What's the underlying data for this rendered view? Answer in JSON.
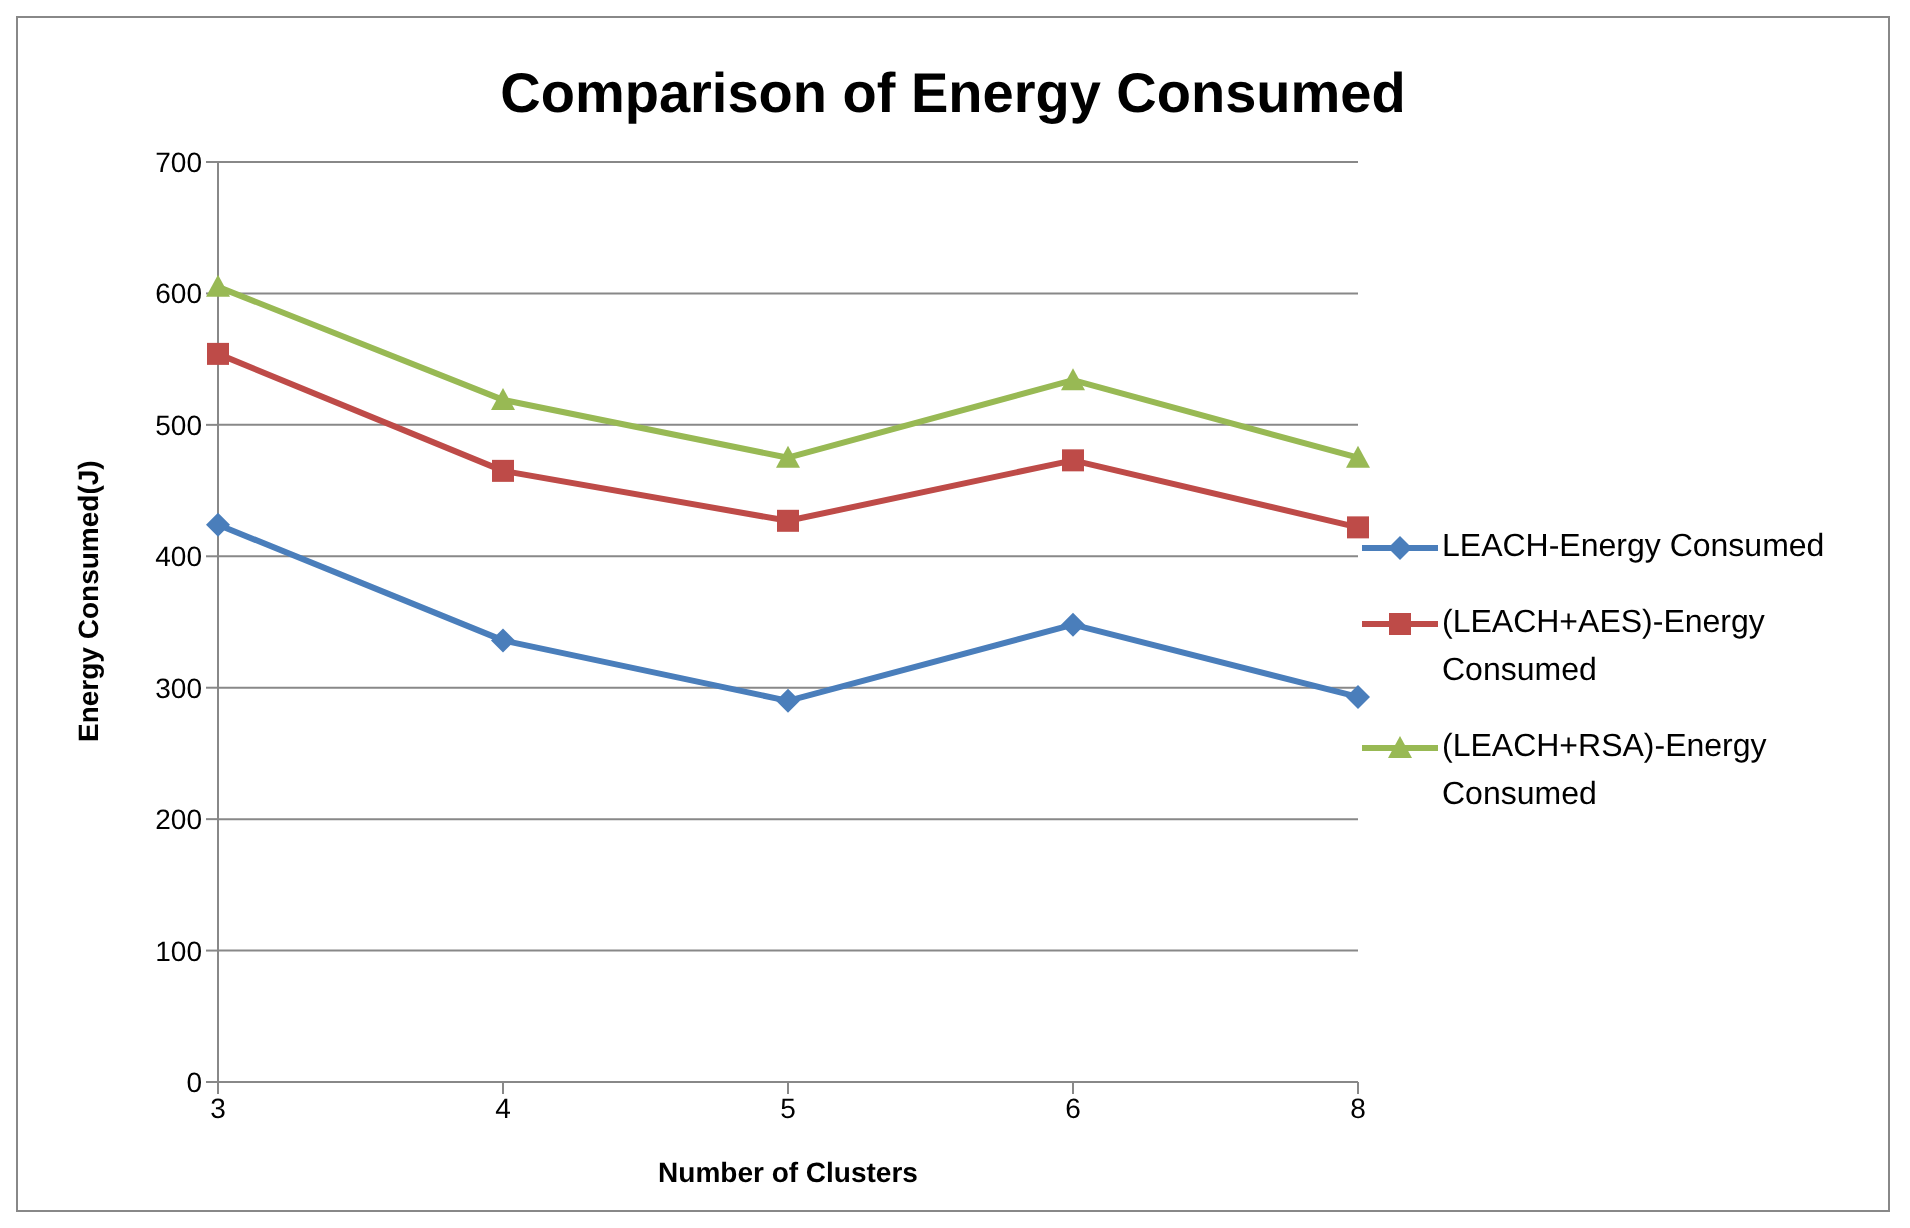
{
  "chart_data": {
    "type": "line",
    "title": "Comparison of Energy Consumed",
    "xlabel": "Number of Clusters",
    "ylabel": "Energy Consumed(J)",
    "categories": [
      "3",
      "4",
      "5",
      "6",
      "8"
    ],
    "series": [
      {
        "name": "LEACH-Energy Consumed",
        "color": "#4a7ebb",
        "marker": "diamond",
        "values": [
          424,
          336,
          290,
          348,
          293
        ]
      },
      {
        "name": "(LEACH+AES)-Energy Consumed",
        "color": "#be4b48",
        "marker": "square",
        "values": [
          554,
          465,
          427,
          473,
          422
        ]
      },
      {
        "name": "(LEACH+RSA)-Energy Consumed",
        "color": "#98b954",
        "marker": "triangle",
        "values": [
          605,
          519,
          475,
          534,
          475
        ]
      }
    ],
    "ylim": [
      0,
      700
    ],
    "yticks": [
      0,
      100,
      200,
      300,
      400,
      500,
      600,
      700
    ],
    "grid": "y",
    "legend": "right"
  }
}
